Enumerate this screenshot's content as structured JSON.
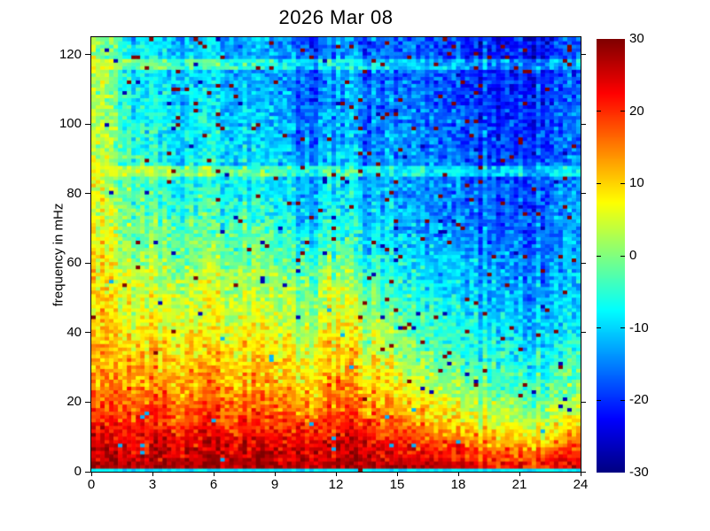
{
  "chart_data": {
    "type": "heatmap",
    "title": "2026 Mar 08",
    "xlabel": "",
    "ylabel": "frequency in mHz",
    "x_unit": "hours of day",
    "xlim": [
      0,
      24
    ],
    "ylim": [
      0,
      125
    ],
    "x_ticks": [
      0,
      3,
      6,
      9,
      12,
      15,
      18,
      21,
      24
    ],
    "y_ticks": [
      0,
      20,
      40,
      60,
      80,
      100,
      120
    ],
    "colormap": "jet",
    "clim": [
      -30,
      30
    ],
    "colorbar_ticks": [
      30,
      20,
      10,
      0,
      -10,
      -20,
      -30
    ],
    "grid_cols": 110,
    "grid_rows": 122,
    "base_times_h": [
      0,
      2,
      4,
      6,
      8,
      10,
      12,
      14,
      16,
      18,
      20,
      22,
      24
    ],
    "base_freqs_mhz": [
      2,
      8,
      15,
      25,
      35,
      45,
      55,
      65,
      75,
      85,
      95,
      105,
      115,
      125
    ],
    "base_values_db": [
      [
        26,
        27,
        26,
        27,
        27,
        26,
        27,
        27,
        25,
        24,
        22,
        22,
        24
      ],
      [
        24,
        25,
        24,
        25,
        25,
        24,
        25,
        24,
        20,
        18,
        14,
        13,
        16
      ],
      [
        18,
        22,
        18,
        20,
        19,
        18,
        20,
        18,
        12,
        8,
        4,
        3,
        6
      ],
      [
        12,
        16,
        12,
        14,
        13,
        12,
        15,
        12,
        4,
        0,
        -3,
        -4,
        -2
      ],
      [
        10,
        12,
        8,
        10,
        9,
        8,
        11,
        6,
        -2,
        -5,
        -7,
        -8,
        -6
      ],
      [
        9,
        8,
        4,
        6,
        5,
        4,
        7,
        2,
        -5,
        -8,
        -10,
        -11,
        -10
      ],
      [
        8,
        5,
        2,
        4,
        3,
        2,
        4,
        -2,
        -8,
        -11,
        -13,
        -13,
        -12
      ],
      [
        7,
        2,
        -2,
        -1,
        -2,
        -4,
        -3,
        -7,
        -11,
        -13,
        -15,
        -15,
        -13
      ],
      [
        6,
        0,
        -5,
        -4,
        -6,
        -8,
        -7,
        -10,
        -13,
        -15,
        -17,
        -16,
        -14
      ],
      [
        5,
        -2,
        -7,
        -6,
        -8,
        -10,
        -9,
        -12,
        -14,
        -16,
        -18,
        -17,
        -15
      ],
      [
        4,
        -4,
        -9,
        -8,
        -10,
        -12,
        -11,
        -13,
        -15,
        -17,
        -19,
        -18,
        -16
      ],
      [
        4,
        -5,
        -10,
        -9,
        -11,
        -13,
        -12,
        -14,
        -16,
        -18,
        -20,
        -19,
        -17
      ],
      [
        3,
        -6,
        -11,
        -10,
        -12,
        -14,
        -13,
        -15,
        -17,
        -19,
        -21,
        -20,
        -18
      ],
      [
        3,
        -7,
        -12,
        -11,
        -13,
        -15,
        -14,
        -16,
        -18,
        -20,
        -22,
        -21,
        -19
      ]
    ],
    "features": {
      "enhanced_lines_mhz": [
        87,
        117
      ],
      "enhancement_db": 7,
      "bottom_edge_row_db": -9,
      "noise_db": 7,
      "column_streak_db": 2.5,
      "cool_streak_hours": [
        10.2,
        10.9,
        13.6
      ],
      "cool_streak_db": 5,
      "hot_speckle_db": 30,
      "cold_speckle_db": -27,
      "warmband_dot_db": -12
    },
    "colors": {
      "background": "#ffffff",
      "axis": "#000000",
      "text": "#000000"
    }
  }
}
